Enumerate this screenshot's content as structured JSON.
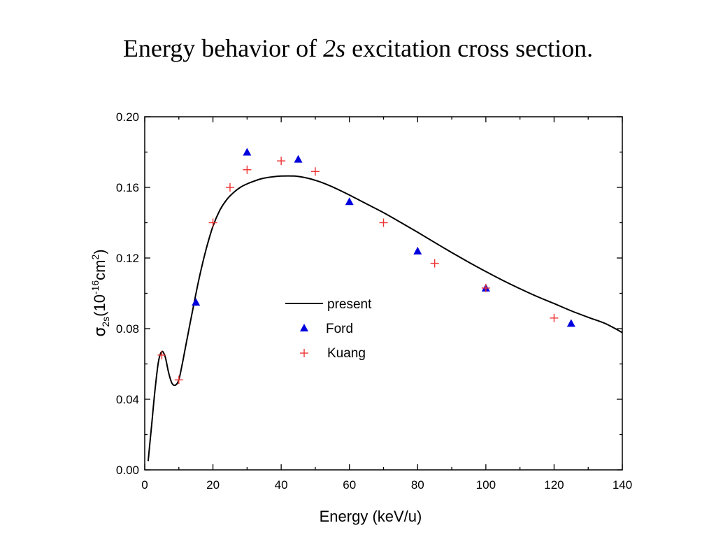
{
  "title": {
    "prefix": "Energy behavior of ",
    "emphasis": "2s",
    "suffix": " excitation cross section."
  },
  "chart_data": {
    "type": "line",
    "xlabel": "Energy (keV/u)",
    "ylabel": {
      "sigma": "σ",
      "subscript": "2s",
      "open": "(10",
      "exponent": "-16",
      "unit": "cm",
      "unit_exponent": "2",
      "close": ")"
    },
    "xlim": [
      0,
      140
    ],
    "ylim": [
      0.0,
      0.2
    ],
    "x_ticks": [
      0,
      20,
      40,
      60,
      80,
      100,
      120,
      140
    ],
    "x_tick_labels": [
      "0",
      "20",
      "40",
      "60",
      "80",
      "100",
      "120",
      "140"
    ],
    "y_ticks": [
      0.0,
      0.04,
      0.08,
      0.12,
      0.16,
      0.2
    ],
    "y_tick_labels": [
      "0.00",
      "0.04",
      "0.08",
      "0.12",
      "0.16",
      "0.20"
    ],
    "grid": false,
    "legend_position": "center",
    "series": [
      {
        "name": "present",
        "kind": "line",
        "color": "#000000",
        "x": [
          1,
          2,
          3,
          4,
          5,
          6,
          7,
          8,
          9,
          10,
          11,
          12,
          14,
          16,
          18,
          20,
          22,
          24,
          26,
          28,
          30,
          32,
          34,
          36,
          38,
          40,
          42,
          44,
          46,
          48,
          50,
          52,
          55,
          58,
          60,
          65,
          70,
          75,
          80,
          85,
          90,
          95,
          100,
          105,
          110,
          115,
          120,
          125,
          130,
          135,
          140
        ],
        "y": [
          0.005,
          0.025,
          0.045,
          0.061,
          0.067,
          0.064,
          0.055,
          0.049,
          0.048,
          0.051,
          0.06,
          0.07,
          0.09,
          0.109,
          0.125,
          0.138,
          0.147,
          0.153,
          0.157,
          0.16,
          0.162,
          0.1635,
          0.1648,
          0.1656,
          0.1661,
          0.1664,
          0.1665,
          0.1664,
          0.1659,
          0.1651,
          0.164,
          0.1627,
          0.1603,
          0.1576,
          0.1557,
          0.1507,
          0.1457,
          0.1402,
          0.1346,
          0.1288,
          0.1231,
          0.1176,
          0.1123,
          0.1073,
          0.1026,
          0.0982,
          0.0942,
          0.0901,
          0.0864,
          0.0829,
          0.0778
        ]
      },
      {
        "name": "Ford",
        "kind": "scatter",
        "marker": "triangle",
        "color": "#0000dd",
        "x": [
          15,
          30,
          45,
          60,
          80,
          100,
          125
        ],
        "y": [
          0.095,
          0.18,
          0.176,
          0.152,
          0.124,
          0.103,
          0.083
        ]
      },
      {
        "name": "Kuang",
        "kind": "scatter",
        "marker": "plus",
        "color": "#ee3333",
        "x": [
          5,
          10,
          20,
          25,
          30,
          40,
          50,
          70,
          85,
          100,
          120
        ],
        "y": [
          0.065,
          0.051,
          0.14,
          0.16,
          0.17,
          0.175,
          0.169,
          0.14,
          0.117,
          0.103,
          0.086
        ]
      }
    ]
  }
}
